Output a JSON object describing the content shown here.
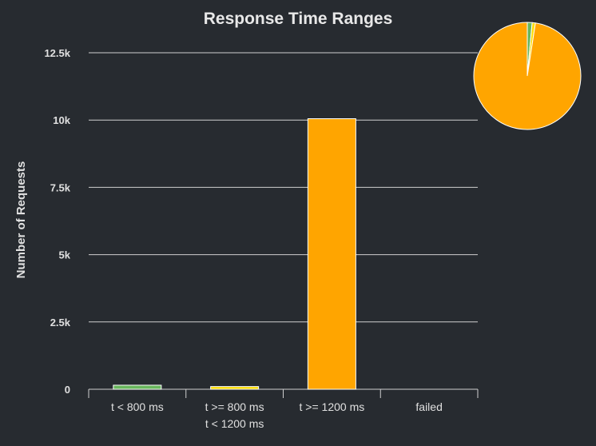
{
  "chart_data": {
    "type": "bar",
    "title": "Response Time Ranges",
    "xlabel": "",
    "ylabel": "Number of Requests",
    "ylim": [
      0,
      12500
    ],
    "yticks": [
      0,
      2500,
      5000,
      7500,
      10000,
      12500
    ],
    "ytick_labels": [
      "0",
      "2.5k",
      "5k",
      "7.5k",
      "10k",
      "12.5k"
    ],
    "grid": true,
    "categories": [
      [
        "t < 800 ms"
      ],
      [
        "t >= 800 ms",
        "t < 1200 ms"
      ],
      [
        "t >= 1200 ms"
      ],
      [
        "failed"
      ]
    ],
    "values": [
      150,
      100,
      10050,
      0
    ],
    "colors": [
      "#68b65c",
      "#ffdd00",
      "#ffa500",
      "#ff0000"
    ],
    "pie": {
      "values": [
        150,
        100,
        10050,
        0
      ],
      "colors": [
        "#68b65c",
        "#ffdd00",
        "#ffa500",
        "#ff0000"
      ]
    }
  }
}
